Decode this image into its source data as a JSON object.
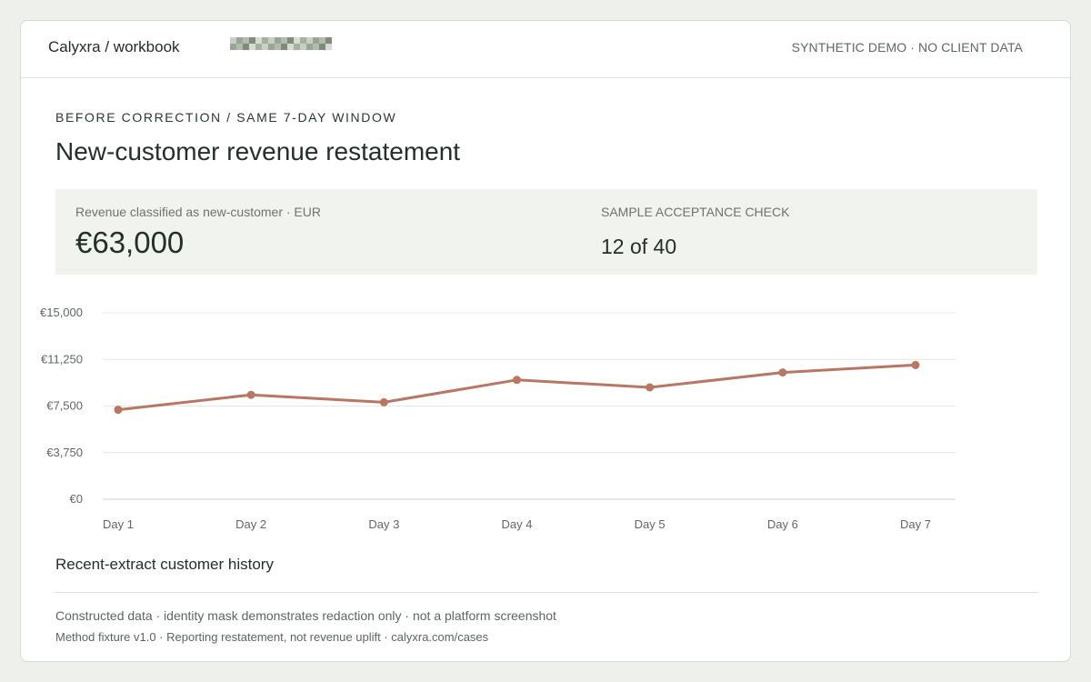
{
  "header": {
    "brand": "Calyxra / workbook",
    "demo_note": "SYNTHETIC DEMO · NO CLIENT DATA"
  },
  "eyebrow": "BEFORE CORRECTION / SAME 7-DAY WINDOW",
  "title": "New-customer revenue restatement",
  "kpi": {
    "revenue_label": "Revenue classified as new-customer · EUR",
    "revenue_value": "€63,000",
    "acceptance_label": "SAMPLE ACCEPTANCE CHECK",
    "acceptance_value": "12 of 40"
  },
  "chart_data": {
    "type": "line",
    "categories": [
      "Day 1",
      "Day 2",
      "Day 3",
      "Day 4",
      "Day 5",
      "Day 6",
      "Day 7"
    ],
    "values": [
      7200,
      8400,
      7800,
      9600,
      9000,
      10200,
      10800
    ],
    "ylim": [
      0,
      15000
    ],
    "yticks": [
      0,
      3750,
      7500,
      11250,
      15000
    ],
    "ytick_labels": [
      "€0",
      "€3,750",
      "€7,500",
      "€11,250",
      "€15,000"
    ],
    "title": "",
    "xlabel": "",
    "ylabel": "",
    "grid": true,
    "line_color": "#b97662"
  },
  "section_title": "Recent-extract customer history",
  "footer": {
    "line1": "Constructed data · identity mask demonstrates redaction only · not a platform screenshot",
    "line2": "Method fixture v1.0 · Reporting restatement, not revenue uplift · calyxra.com/cases"
  }
}
